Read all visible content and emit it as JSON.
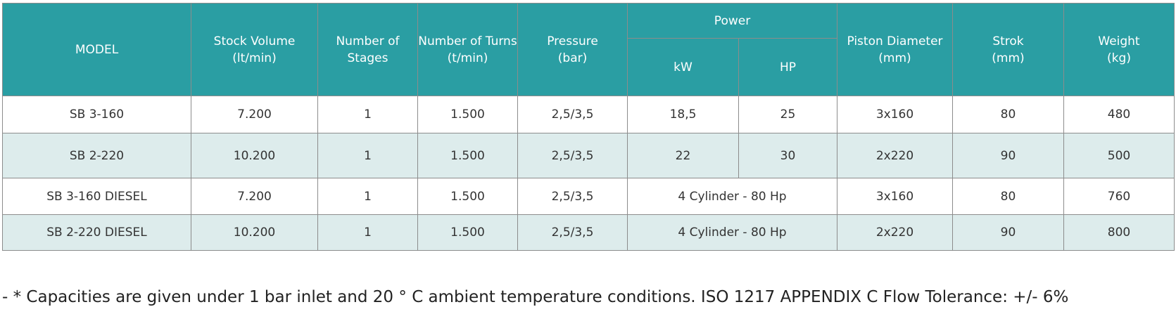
{
  "table": {
    "header": [
      [
        "MODEL"
      ],
      [
        "Stock  Volume",
        "(lt/min)"
      ],
      [
        "Number of",
        "Stages"
      ],
      [
        "Number of Turns",
        "(t/min)"
      ],
      [
        "Pressure",
        "(bar)"
      ],
      [
        "Piston Diameter",
        "(mm)"
      ],
      [
        "Strok",
        "(mm)"
      ],
      [
        "Weight",
        "(kg)"
      ]
    ],
    "power_group": {
      "title": "Power",
      "sub": [
        "kW",
        "HP"
      ]
    },
    "rows": [
      [
        "SB 3-160",
        "7.200",
        "1",
        "1.500",
        "2,5/3,5",
        "18,5",
        "25",
        "3x160",
        "80",
        "480"
      ],
      [
        "SB 2-220",
        "10.200",
        "1",
        "1.500",
        "2,5/3,5",
        "22",
        "30",
        "2x220",
        "90",
        "500"
      ],
      [
        "SB 3-160 DIESEL",
        "7.200",
        "1",
        "1.500",
        "2,5/3,5",
        "4 Cylinder - 80 Hp",
        "3x160",
        "80",
        "760"
      ],
      [
        "SB 2-220 DIESEL",
        "10.200",
        "1",
        "1.500",
        "2,5/3,5",
        "4 Cylinder - 80 Hp",
        "2x220",
        "90",
        "800"
      ]
    ]
  },
  "footnote": "- * Capacities are given under 1 bar inlet and 20 ° C ambient temperature conditions. ISO 1217 APPENDIX C Flow Tolerance: +/- 6%"
}
